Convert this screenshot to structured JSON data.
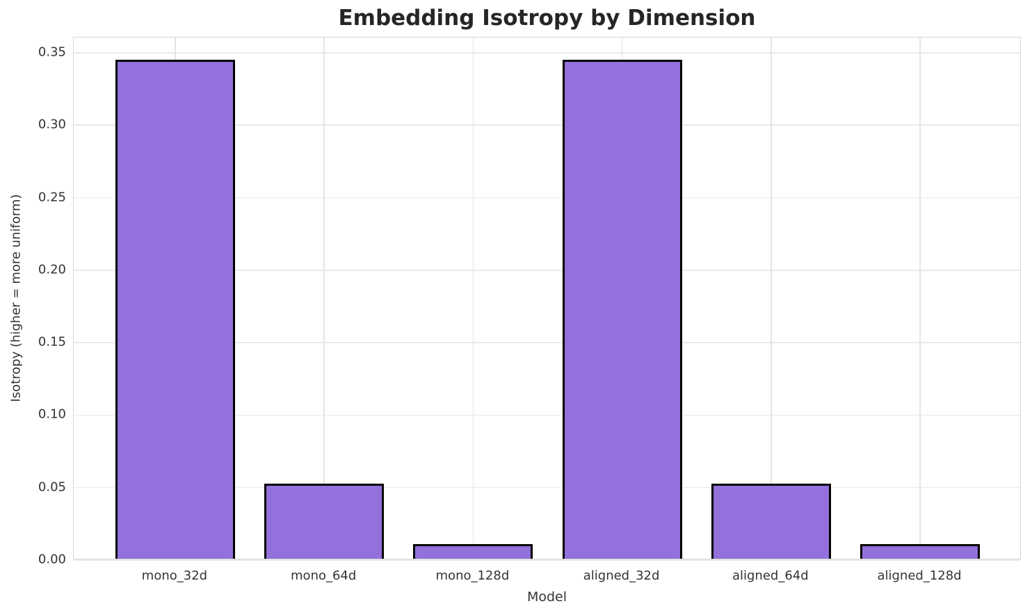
{
  "chart_data": {
    "type": "bar",
    "title": "Embedding Isotropy by Dimension",
    "xlabel": "Model",
    "ylabel": "Isotropy (higher = more uniform)",
    "categories": [
      "mono_32d",
      "mono_64d",
      "mono_128d",
      "aligned_32d",
      "aligned_64d",
      "aligned_128d"
    ],
    "values": [
      0.344,
      0.052,
      0.01,
      0.344,
      0.052,
      0.01
    ],
    "ylim": [
      0,
      0.3605
    ],
    "yticks": [
      {
        "label": "0.00",
        "value": 0.0
      },
      {
        "label": "0.05",
        "value": 0.05
      },
      {
        "label": "0.10",
        "value": 0.1
      },
      {
        "label": "0.15",
        "value": 0.15
      },
      {
        "label": "0.20",
        "value": 0.2
      },
      {
        "label": "0.25",
        "value": 0.25
      },
      {
        "label": "0.30",
        "value": 0.3
      },
      {
        "label": "0.35",
        "value": 0.35
      }
    ],
    "grid": true,
    "legend_position": "none",
    "colors": {
      "bar_fill": "#9370DB",
      "bar_edge": "#000000",
      "gridline": "#e9e9e9",
      "spine": "#d7d7d7",
      "title_text": "#262626",
      "tick_text": "#333333"
    }
  }
}
